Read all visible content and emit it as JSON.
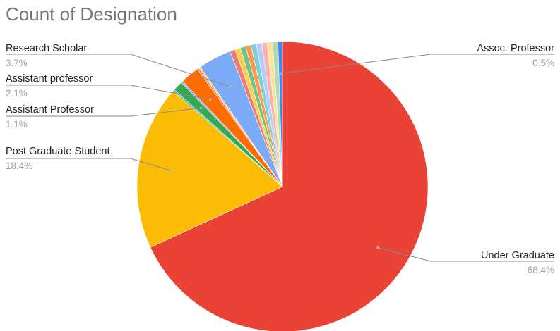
{
  "chart_data": {
    "type": "pie",
    "title": "Count of Designation",
    "slices": [
      {
        "label": "Under Graduate",
        "value": 68.4,
        "color": "#ea4335",
        "show_label": true
      },
      {
        "label": "Post Graduate Student",
        "value": 18.4,
        "color": "#fbbc04",
        "show_label": true
      },
      {
        "label": "",
        "value": 0.2,
        "color": "#46bdc6",
        "show_label": false
      },
      {
        "label": "Assistant Professor",
        "value": 1.1,
        "color": "#34a853",
        "show_label": true
      },
      {
        "label": "",
        "value": 0.2,
        "color": "#7baaf7",
        "show_label": false
      },
      {
        "label": "Assistant professor",
        "value": 2.1,
        "color": "#ff6d01",
        "show_label": true
      },
      {
        "label": "",
        "value": 0.2,
        "color": "#f07b72",
        "show_label": false
      },
      {
        "label": "",
        "value": 0.2,
        "color": "#fcd04f",
        "show_label": false
      },
      {
        "label": "Research Scholar",
        "value": 3.7,
        "color": "#7baaf7",
        "show_label": true
      },
      {
        "label": "",
        "value": 0.6,
        "color": "#f07b72",
        "show_label": false
      },
      {
        "label": "",
        "value": 0.6,
        "color": "#fcd04f",
        "show_label": false
      },
      {
        "label": "",
        "value": 0.6,
        "color": "#71c287",
        "show_label": false
      },
      {
        "label": "",
        "value": 0.6,
        "color": "#ff994d",
        "show_label": false
      },
      {
        "label": "",
        "value": 0.6,
        "color": "#7ed1d7",
        "show_label": false
      },
      {
        "label": "",
        "value": 0.6,
        "color": "#b3cefb",
        "show_label": false
      },
      {
        "label": "",
        "value": 0.6,
        "color": "#f7b4ae",
        "show_label": false
      },
      {
        "label": "",
        "value": 0.6,
        "color": "#fde49b",
        "show_label": false
      },
      {
        "label": "",
        "value": 0.6,
        "color": "#aedcba",
        "show_label": false
      },
      {
        "label": "Assoc. Professor",
        "value": 0.5,
        "color": "#4285f4",
        "show_label": true
      }
    ],
    "label_display": {
      "Under Graduate": "68.4%",
      "Post Graduate Student": "18.4%",
      "Assistant Professor": "1.1%",
      "Assistant professor": "2.1%",
      "Research Scholar": "3.7%",
      "Assoc. Professor": "0.5%"
    },
    "legend": "none"
  }
}
